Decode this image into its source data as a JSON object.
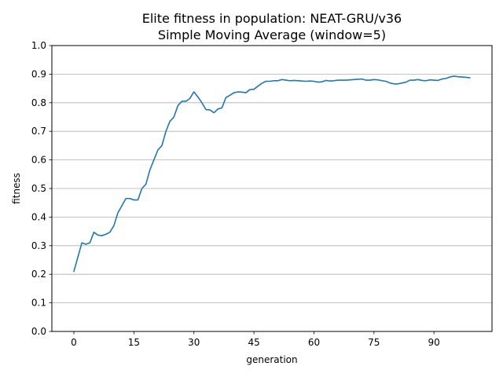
{
  "chart_data": {
    "type": "line",
    "title_line1": "Elite fitness in population: NEAT-GRU/v36",
    "title_line2": "Simple Moving Average (window=5)",
    "xlabel": "generation",
    "ylabel": "fitness",
    "xlim": [
      -5.5,
      104.5
    ],
    "ylim": [
      0.0,
      1.0
    ],
    "xticks": [
      0,
      15,
      30,
      45,
      60,
      75,
      90
    ],
    "yticks": [
      0.0,
      0.1,
      0.2,
      0.3,
      0.4,
      0.5,
      0.6,
      0.7,
      0.8,
      0.9,
      1.0
    ],
    "xtick_labels": [
      "0",
      "15",
      "30",
      "45",
      "60",
      "75",
      "90"
    ],
    "ytick_labels": [
      "0.0",
      "0.1",
      "0.2",
      "0.3",
      "0.4",
      "0.5",
      "0.6",
      "0.7",
      "0.8",
      "0.9",
      "1.0"
    ],
    "grid": "y",
    "line_color": "#1f77b4",
    "grid_color": "#b0b0b0",
    "x": [
      0,
      1,
      2,
      3,
      4,
      5,
      6,
      7,
      8,
      9,
      10,
      11,
      12,
      13,
      14,
      15,
      16,
      17,
      18,
      19,
      20,
      21,
      22,
      23,
      24,
      25,
      26,
      27,
      28,
      29,
      30,
      31,
      32,
      33,
      34,
      35,
      36,
      37,
      38,
      39,
      40,
      41,
      42,
      43,
      44,
      45,
      46,
      47,
      48,
      49,
      50,
      51,
      52,
      53,
      54,
      55,
      56,
      57,
      58,
      59,
      60,
      61,
      62,
      63,
      64,
      65,
      66,
      67,
      68,
      69,
      70,
      71,
      72,
      73,
      74,
      75,
      76,
      77,
      78,
      79,
      80,
      81,
      82,
      83,
      84,
      85,
      86,
      87,
      88,
      89,
      90,
      91,
      92,
      93,
      94,
      95,
      96,
      97,
      98,
      99
    ],
    "y": [
      0.21,
      0.26,
      0.31,
      0.305,
      0.31,
      0.347,
      0.337,
      0.335,
      0.34,
      0.347,
      0.37,
      0.415,
      0.44,
      0.465,
      0.465,
      0.46,
      0.46,
      0.5,
      0.515,
      0.565,
      0.6,
      0.635,
      0.65,
      0.7,
      0.735,
      0.75,
      0.79,
      0.805,
      0.805,
      0.815,
      0.838,
      0.82,
      0.8,
      0.776,
      0.775,
      0.765,
      0.778,
      0.782,
      0.818,
      0.826,
      0.835,
      0.838,
      0.837,
      0.835,
      0.846,
      0.847,
      0.858,
      0.868,
      0.875,
      0.875,
      0.877,
      0.877,
      0.881,
      0.879,
      0.877,
      0.878,
      0.877,
      0.876,
      0.875,
      0.876,
      0.875,
      0.872,
      0.873,
      0.878,
      0.876,
      0.877,
      0.879,
      0.879,
      0.879,
      0.88,
      0.881,
      0.882,
      0.883,
      0.879,
      0.879,
      0.881,
      0.88,
      0.877,
      0.875,
      0.869,
      0.866,
      0.866,
      0.869,
      0.872,
      0.879,
      0.879,
      0.881,
      0.878,
      0.877,
      0.88,
      0.879,
      0.878,
      0.883,
      0.885,
      0.89,
      0.893,
      0.891,
      0.89,
      0.889,
      0.887
    ]
  }
}
